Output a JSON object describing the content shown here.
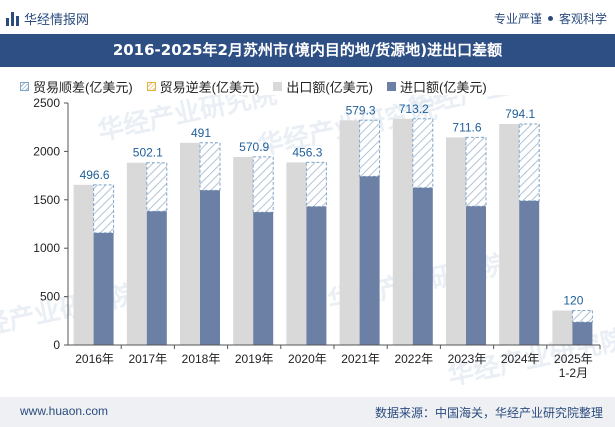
{
  "header": {
    "brand": "华经情报网",
    "tag1": "专业严谨",
    "tag2": "客观科学",
    "title": "2016-2025年2月苏州市(境内目的地/货源地)进出口差额"
  },
  "watermark": "华经产业研究院",
  "footer": {
    "site": "www.huaon.com",
    "source": "数据来源：中国海关，华经产业研究院整理"
  },
  "colors": {
    "export": "#d9d9d9",
    "import": "#6c7fa4",
    "surplus_stroke": "#7fa6c9",
    "surplus_hatch": "#9bb3cc",
    "deficit_stroke": "#e2b040",
    "label": "#1f5e9a",
    "title_bg": "#2e4f84"
  },
  "chart_data": {
    "type": "bar",
    "title": "2016-2025年2月苏州市(境内目的地/货源地)进出口差额",
    "categories": [
      "2016年",
      "2017年",
      "2018年",
      "2019年",
      "2020年",
      "2021年",
      "2022年",
      "2023年",
      "2024年",
      "2025年\n1-2月"
    ],
    "series": [
      {
        "name": "贸易顺差(亿美元)",
        "values": [
          496.6,
          502.1,
          491,
          570.9,
          456.3,
          579.3,
          713.2,
          711.6,
          794.1,
          120
        ]
      },
      {
        "name": "贸易逆差(亿美元)",
        "values": [
          0,
          0,
          0,
          0,
          0,
          0,
          0,
          0,
          0,
          0
        ]
      },
      {
        "name": "出口额(亿美元)",
        "values": [
          1655,
          1883,
          2089,
          1943,
          1886,
          2321,
          2337,
          2145,
          2283,
          356
        ]
      },
      {
        "name": "进口额(亿美元)",
        "values": [
          1158,
          1381,
          1598,
          1372,
          1430,
          1742,
          1624,
          1433,
          1489,
          236
        ]
      }
    ],
    "data_labels": [
      "496.6",
      "502.1",
      "491",
      "570.9",
      "456.3",
      "579.3",
      "713.2",
      "711.6",
      "794.1",
      "120"
    ],
    "ylim": [
      0,
      2500
    ],
    "yticks": [
      0,
      500,
      1000,
      1500,
      2000,
      2500
    ],
    "xlabel": "",
    "ylabel": ""
  }
}
